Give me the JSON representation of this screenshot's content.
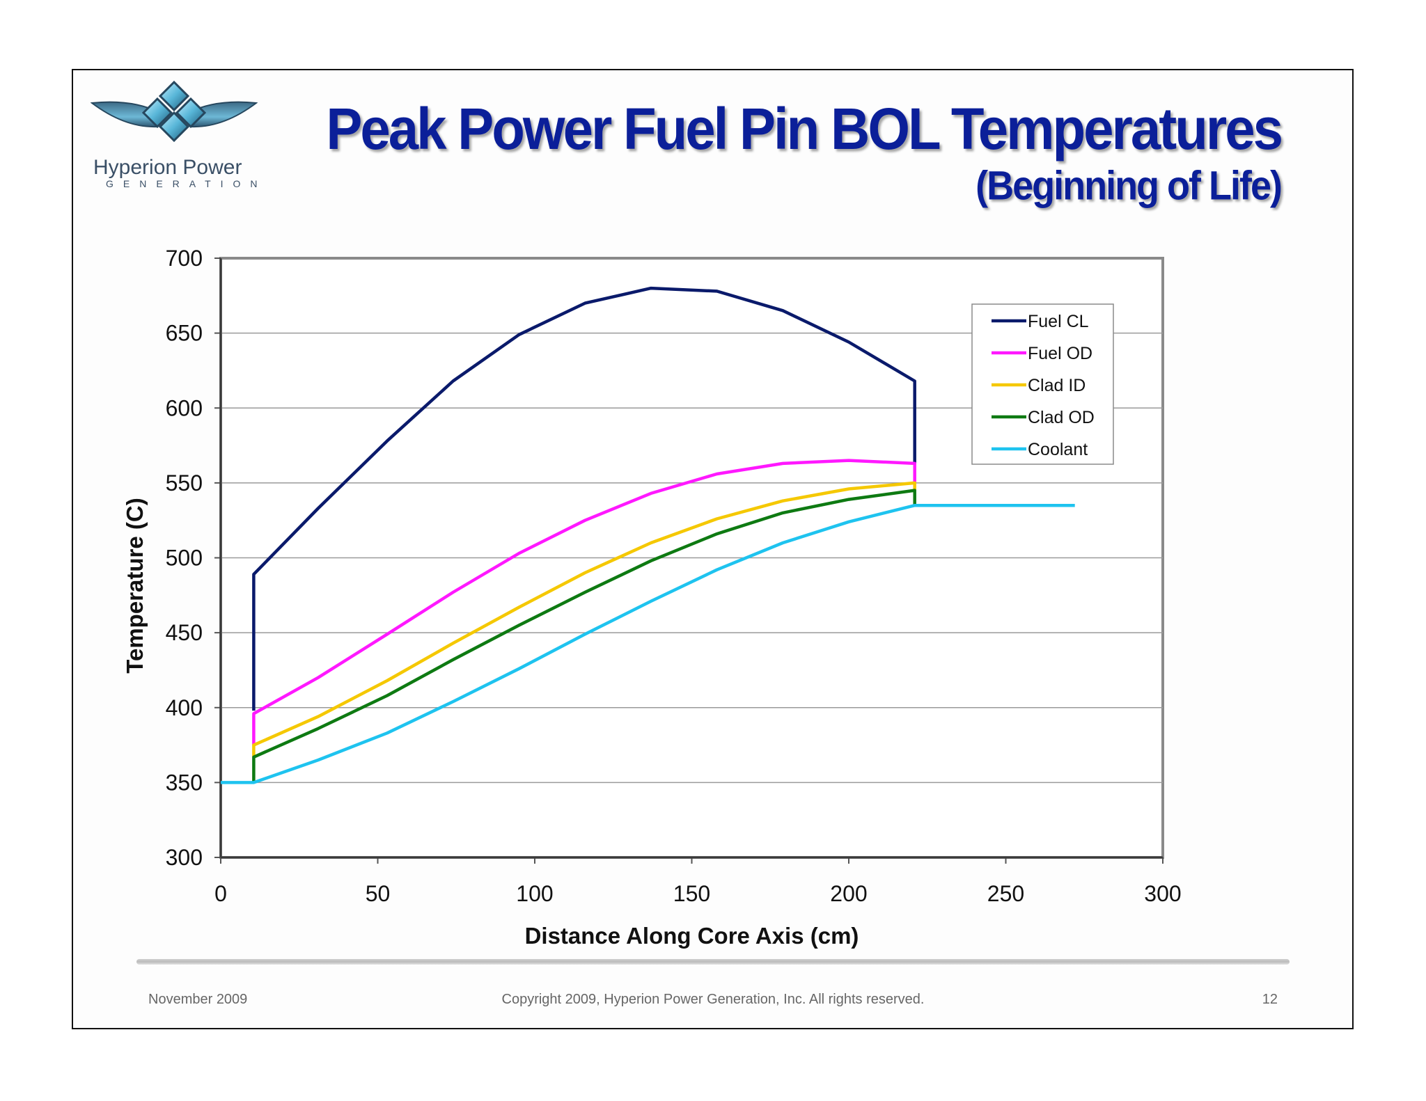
{
  "header": {
    "title": "Peak Power Fuel Pin BOL Temperatures",
    "subtitle": "(Beginning of Life)",
    "logo_name": "Hyperion Power",
    "logo_sub": "GENERATION"
  },
  "footer": {
    "date": "November 2009",
    "copyright": "Copyright 2009, Hyperion Power Generation, Inc. All rights reserved.",
    "page": "12"
  },
  "colors": {
    "title": "#0b1f99",
    "fuel_cl": "#0a1a6b",
    "fuel_od": "#ff18ff",
    "clad_id": "#f5c800",
    "clad_od": "#0e7a12",
    "coolant": "#1ec3ef"
  },
  "chart_data": {
    "type": "line",
    "title": "",
    "xlabel": "Distance Along Core Axis (cm)",
    "ylabel": "Temperature (C)",
    "xlim": [
      0,
      300
    ],
    "ylim": [
      300,
      700
    ],
    "xticks": [
      0,
      50,
      100,
      150,
      200,
      250,
      300
    ],
    "yticks": [
      300,
      350,
      400,
      450,
      500,
      550,
      600,
      650,
      700
    ],
    "grid": "horizontal",
    "legend_position": "top-right",
    "series": [
      {
        "name": "Fuel CL",
        "color": "#0a1a6b",
        "points": [
          [
            10.5,
            398
          ],
          [
            10.5,
            489
          ],
          [
            31,
            533
          ],
          [
            53,
            578
          ],
          [
            74,
            618
          ],
          [
            95,
            649
          ],
          [
            116,
            670
          ],
          [
            137,
            680
          ],
          [
            158,
            678
          ],
          [
            179,
            665
          ],
          [
            200,
            644
          ],
          [
            221,
            618
          ],
          [
            221,
            563
          ]
        ]
      },
      {
        "name": "Fuel OD",
        "color": "#ff18ff",
        "points": [
          [
            10.5,
            375
          ],
          [
            10.5,
            396
          ],
          [
            31,
            420
          ],
          [
            53,
            449
          ],
          [
            74,
            477
          ],
          [
            95,
            503
          ],
          [
            116,
            525
          ],
          [
            137,
            543
          ],
          [
            158,
            556
          ],
          [
            179,
            563
          ],
          [
            200,
            565
          ],
          [
            221,
            563
          ],
          [
            221,
            550
          ]
        ]
      },
      {
        "name": "Clad ID",
        "color": "#f5c800",
        "points": [
          [
            10.5,
            367
          ],
          [
            10.5,
            375
          ],
          [
            31,
            394
          ],
          [
            53,
            418
          ],
          [
            74,
            443
          ],
          [
            95,
            467
          ],
          [
            116,
            490
          ],
          [
            137,
            510
          ],
          [
            158,
            526
          ],
          [
            179,
            538
          ],
          [
            200,
            546
          ],
          [
            221,
            550
          ],
          [
            221,
            545
          ]
        ]
      },
      {
        "name": "Clad OD",
        "color": "#0e7a12",
        "points": [
          [
            10.5,
            350
          ],
          [
            10.5,
            367
          ],
          [
            31,
            386
          ],
          [
            53,
            408
          ],
          [
            74,
            432
          ],
          [
            95,
            455
          ],
          [
            116,
            477
          ],
          [
            137,
            498
          ],
          [
            158,
            516
          ],
          [
            179,
            530
          ],
          [
            200,
            539
          ],
          [
            221,
            545
          ],
          [
            221,
            535
          ]
        ]
      },
      {
        "name": "Coolant",
        "color": "#1ec3ef",
        "points": [
          [
            0,
            350
          ],
          [
            10.5,
            350
          ],
          [
            31,
            365
          ],
          [
            53,
            383
          ],
          [
            74,
            404
          ],
          [
            95,
            426
          ],
          [
            116,
            449
          ],
          [
            137,
            471
          ],
          [
            158,
            492
          ],
          [
            179,
            510
          ],
          [
            200,
            524
          ],
          [
            221,
            535
          ],
          [
            272,
            535
          ]
        ]
      }
    ]
  }
}
